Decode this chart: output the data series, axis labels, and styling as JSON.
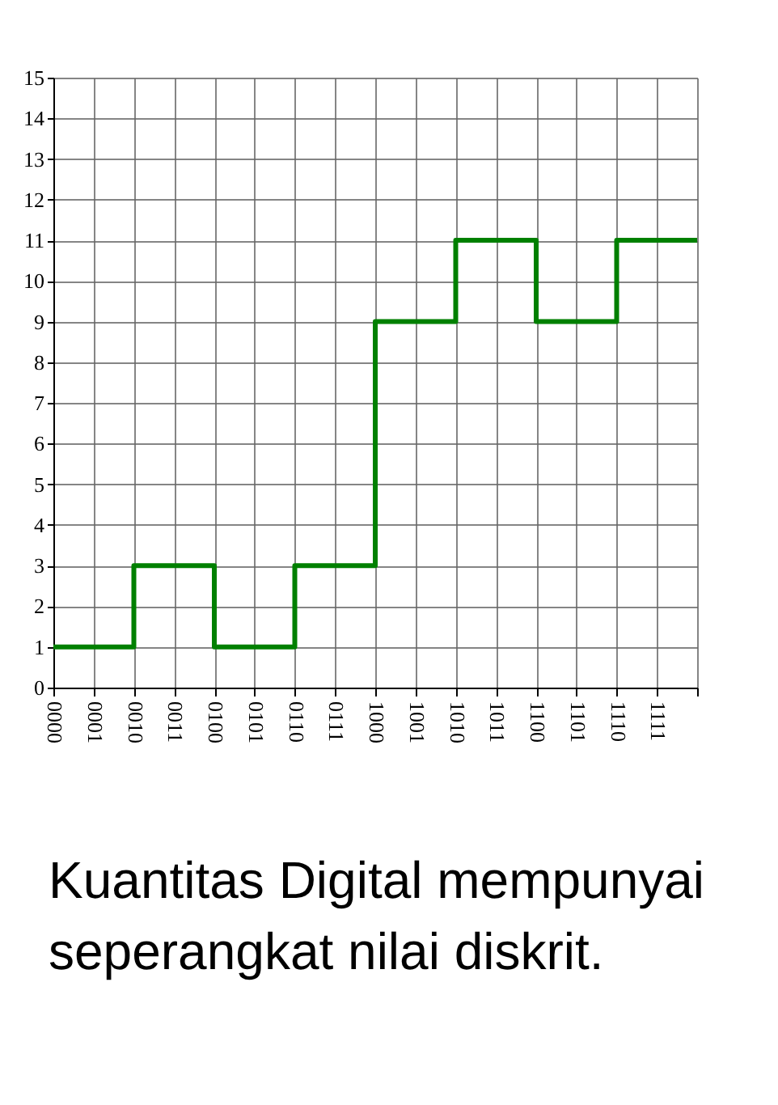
{
  "chart_data": {
    "type": "step",
    "categories": [
      "0000",
      "0001",
      "0010",
      "0011",
      "0100",
      "0101",
      "0110",
      "0111",
      "1000",
      "1001",
      "1010",
      "1011",
      "1100",
      "1101",
      "1110",
      "1111",
      null
    ],
    "series": [
      {
        "color": "#008000",
        "values": [
          1,
          1,
          3,
          3,
          1,
          1,
          3,
          3,
          9,
          9,
          11,
          11,
          9,
          9,
          11,
          11,
          11
        ]
      }
    ],
    "ylim": [
      0,
      15
    ],
    "yticks": [
      0,
      1,
      2,
      3,
      4,
      5,
      6,
      7,
      8,
      9,
      10,
      11,
      12,
      13,
      14,
      15
    ],
    "grid": true,
    "line_style": "solid",
    "annotations": [
      "Kuantitas Digital mempunyai seperangkat nilai diskrit."
    ]
  }
}
